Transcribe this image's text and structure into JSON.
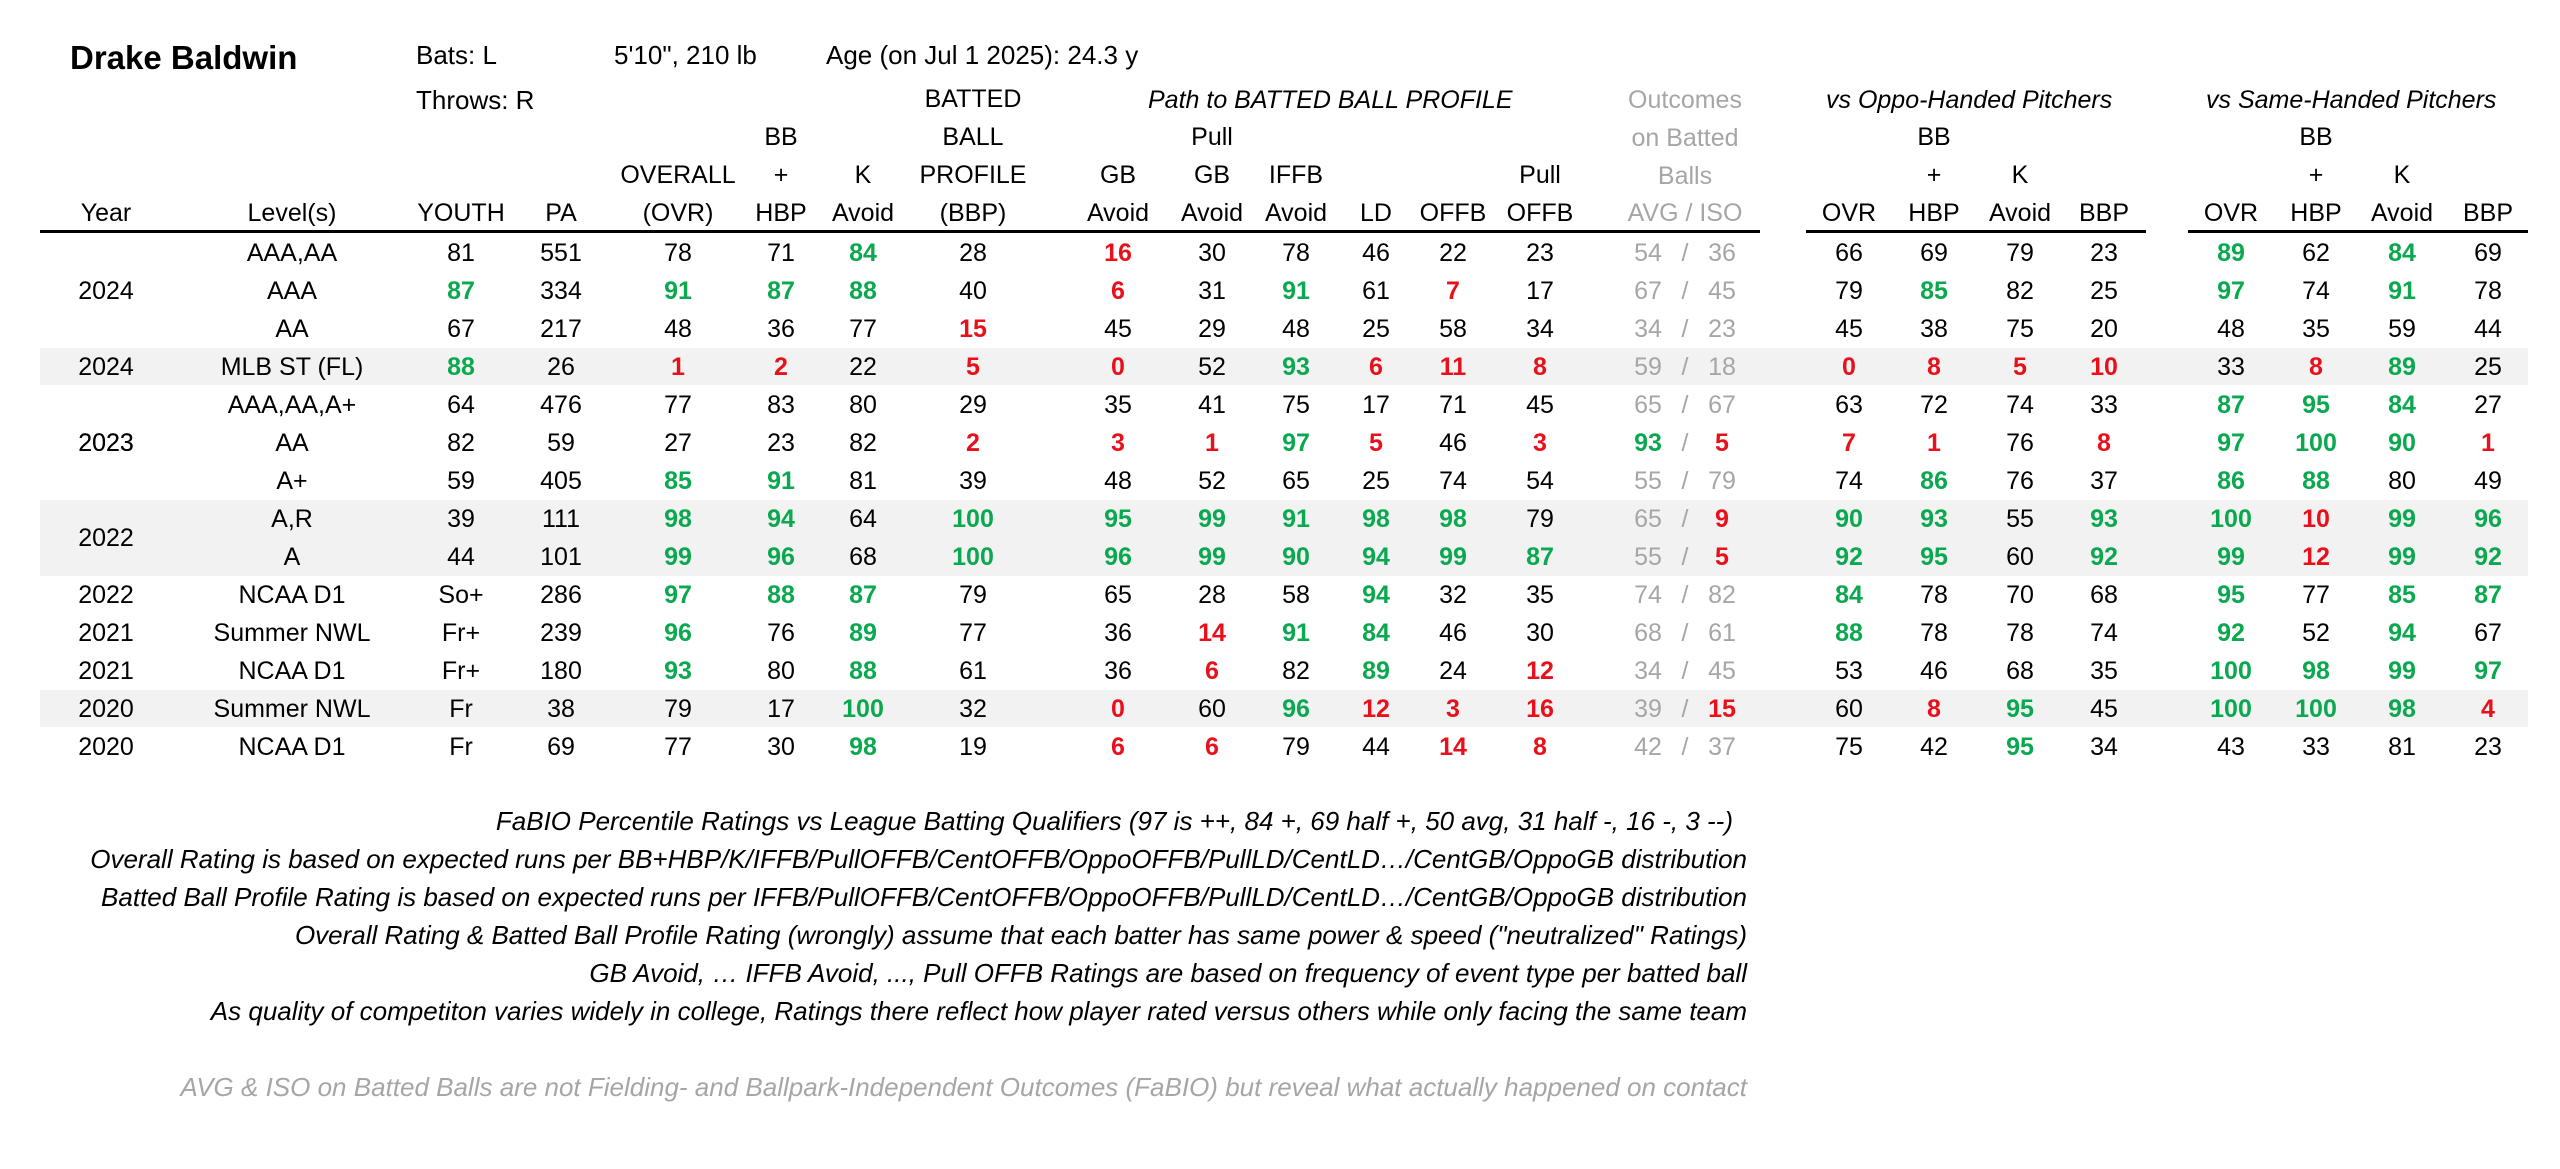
{
  "player": {
    "name": "Drake Baldwin",
    "bats": "Bats: L",
    "throws": "Throws: R",
    "size": "5'10\", 210 lb",
    "age": "Age (on Jul 1 2025): 24.3 y"
  },
  "groups": {
    "path": "Path to BATTED BALL PROFILE",
    "outcomes": [
      "Outcomes",
      "on Batted",
      "Balls"
    ],
    "oppo": "vs Oppo-Handed Pitchers",
    "same": "vs Same-Handed Pitchers"
  },
  "headers": [
    {
      "key": "year",
      "lines": [
        "Year"
      ]
    },
    {
      "key": "level",
      "lines": [
        "Level(s)"
      ]
    },
    {
      "key": "youth",
      "lines": [
        "YOUTH"
      ]
    },
    {
      "key": "pa",
      "lines": [
        "PA"
      ]
    },
    {
      "key": "ovr",
      "lines": [
        "OVERALL",
        "(OVR)"
      ]
    },
    {
      "key": "bbhbp",
      "lines": [
        "BB",
        "+",
        "HBP"
      ]
    },
    {
      "key": "kavoid",
      "lines": [
        "K",
        "Avoid"
      ]
    },
    {
      "key": "bbp",
      "lines": [
        "BATTED",
        "BALL",
        "PROFILE",
        "(BBP)"
      ]
    },
    {
      "key": "gbavoid",
      "lines": [
        "GB",
        "Avoid"
      ]
    },
    {
      "key": "pullgb",
      "lines": [
        "Pull",
        "GB",
        "Avoid"
      ]
    },
    {
      "key": "iffb",
      "lines": [
        "IFFB",
        "Avoid"
      ]
    },
    {
      "key": "ld",
      "lines": [
        "LD"
      ]
    },
    {
      "key": "offb",
      "lines": [
        "OFFB"
      ]
    },
    {
      "key": "pulloffb",
      "lines": [
        "Pull",
        "OFFB"
      ]
    },
    {
      "key": "avgiso",
      "lines": [
        "AVG  /  ISO"
      ]
    },
    {
      "key": "o_ovr",
      "lines": [
        "OVR"
      ]
    },
    {
      "key": "o_bb",
      "lines": [
        "BB",
        "+",
        "HBP"
      ]
    },
    {
      "key": "o_k",
      "lines": [
        "K",
        "Avoid"
      ]
    },
    {
      "key": "o_bbp",
      "lines": [
        "BBP"
      ]
    },
    {
      "key": "s_ovr",
      "lines": [
        "OVR"
      ]
    },
    {
      "key": "s_bb",
      "lines": [
        "BB",
        "+",
        "HBP"
      ]
    },
    {
      "key": "s_k",
      "lines": [
        "K",
        "Avoid"
      ]
    },
    {
      "key": "s_bbp",
      "lines": [
        "BBP"
      ]
    }
  ],
  "rows": [
    {
      "year": "",
      "level": "AAA,AA",
      "youth": "81",
      "pa": "551",
      "ovr": "78",
      "bb": "71",
      "k": "84",
      "bbp": "28",
      "gb": "16",
      "pgb": "30",
      "iffb": "78",
      "ld": "46",
      "offb": "22",
      "poffb": "23",
      "avg": "54",
      "iso": "36",
      "oo": "66",
      "ob": "69",
      "ok": "79",
      "op": "23",
      "so": "89",
      "sb": "62",
      "sk": "84",
      "sp": "69"
    },
    {
      "year": "2024",
      "level": "AAA",
      "youth": "87",
      "pa": "334",
      "ovr": "91",
      "bb": "87",
      "k": "88",
      "bbp": "40",
      "gb": "6",
      "pgb": "31",
      "iffb": "91",
      "ld": "61",
      "offb": "7",
      "poffb": "17",
      "avg": "67",
      "iso": "45",
      "oo": "79",
      "ob": "85",
      "ok": "82",
      "op": "25",
      "so": "97",
      "sb": "74",
      "sk": "91",
      "sp": "78"
    },
    {
      "year": "",
      "level": "AA",
      "youth": "67",
      "pa": "217",
      "ovr": "48",
      "bb": "36",
      "k": "77",
      "bbp": "15",
      "gb": "45",
      "pgb": "29",
      "iffb": "48",
      "ld": "25",
      "offb": "58",
      "poffb": "34",
      "avg": "34",
      "iso": "23",
      "oo": "45",
      "ob": "38",
      "ok": "75",
      "op": "20",
      "so": "48",
      "sb": "35",
      "sk": "59",
      "sp": "44"
    },
    {
      "year": "2024",
      "level": "MLB ST (FL)",
      "youth": "88",
      "pa": "26",
      "ovr": "1",
      "bb": "2",
      "k": "22",
      "bbp": "5",
      "gb": "0",
      "pgb": "52",
      "iffb": "93",
      "ld": "6",
      "offb": "11",
      "poffb": "8",
      "avg": "59",
      "iso": "18",
      "oo": "0",
      "ob": "8",
      "ok": "5",
      "op": "10",
      "so": "33",
      "sb": "8",
      "sk": "89",
      "sp": "25"
    },
    {
      "year": "",
      "level": "AAA,AA,A+",
      "youth": "64",
      "pa": "476",
      "ovr": "77",
      "bb": "83",
      "k": "80",
      "bbp": "29",
      "gb": "35",
      "pgb": "41",
      "iffb": "75",
      "ld": "17",
      "offb": "71",
      "poffb": "45",
      "avg": "65",
      "iso": "67",
      "oo": "63",
      "ob": "72",
      "ok": "74",
      "op": "33",
      "so": "87",
      "sb": "95",
      "sk": "84",
      "sp": "27"
    },
    {
      "year": "2023",
      "level": "AA",
      "youth": "82",
      "pa": "59",
      "ovr": "27",
      "bb": "23",
      "k": "82",
      "bbp": "2",
      "gb": "3",
      "pgb": "1",
      "iffb": "97",
      "ld": "5",
      "offb": "46",
      "poffb": "3",
      "avg": "93",
      "iso": "5",
      "oo": "7",
      "ob": "1",
      "ok": "76",
      "op": "8",
      "so": "97",
      "sb": "100",
      "sk": "90",
      "sp": "1"
    },
    {
      "year": "",
      "level": "A+",
      "youth": "59",
      "pa": "405",
      "ovr": "85",
      "bb": "91",
      "k": "81",
      "bbp": "39",
      "gb": "48",
      "pgb": "52",
      "iffb": "65",
      "ld": "25",
      "offb": "74",
      "poffb": "54",
      "avg": "55",
      "iso": "79",
      "oo": "74",
      "ob": "86",
      "ok": "76",
      "op": "37",
      "so": "86",
      "sb": "88",
      "sk": "80",
      "sp": "49"
    },
    {
      "year": "",
      "level": "A,R",
      "youth": "39",
      "pa": "111",
      "ovr": "98",
      "bb": "94",
      "k": "64",
      "bbp": "100",
      "gb": "95",
      "pgb": "99",
      "iffb": "91",
      "ld": "98",
      "offb": "98",
      "poffb": "79",
      "avg": "65",
      "iso": "9",
      "oo": "90",
      "ob": "93",
      "ok": "55",
      "op": "93",
      "so": "100",
      "sb": "10",
      "sk": "99",
      "sp": "96"
    },
    {
      "year": "",
      "level": "A",
      "youth": "44",
      "pa": "101",
      "ovr": "99",
      "bb": "96",
      "k": "68",
      "bbp": "100",
      "gb": "96",
      "pgb": "99",
      "iffb": "90",
      "ld": "94",
      "offb": "99",
      "poffb": "87",
      "avg": "55",
      "iso": "5",
      "oo": "92",
      "ob": "95",
      "ok": "60",
      "op": "92",
      "so": "99",
      "sb": "12",
      "sk": "99",
      "sp": "92"
    },
    {
      "year": "2022",
      "level": "NCAA D1",
      "youth": "So+",
      "pa": "286",
      "ovr": "97",
      "bb": "88",
      "k": "87",
      "bbp": "79",
      "gb": "65",
      "pgb": "28",
      "iffb": "58",
      "ld": "94",
      "offb": "32",
      "poffb": "35",
      "avg": "74",
      "iso": "82",
      "oo": "84",
      "ob": "78",
      "ok": "70",
      "op": "68",
      "so": "95",
      "sb": "77",
      "sk": "85",
      "sp": "87"
    },
    {
      "year": "2021",
      "level": "Summer NWL",
      "youth": "Fr+",
      "pa": "239",
      "ovr": "96",
      "bb": "76",
      "k": "89",
      "bbp": "77",
      "gb": "36",
      "pgb": "14",
      "iffb": "91",
      "ld": "84",
      "offb": "46",
      "poffb": "30",
      "avg": "68",
      "iso": "61",
      "oo": "88",
      "ob": "78",
      "ok": "78",
      "op": "74",
      "so": "92",
      "sb": "52",
      "sk": "94",
      "sp": "67"
    },
    {
      "year": "2021",
      "level": "NCAA D1",
      "youth": "Fr+",
      "pa": "180",
      "ovr": "93",
      "bb": "80",
      "k": "88",
      "bbp": "61",
      "gb": "36",
      "pgb": "6",
      "iffb": "82",
      "ld": "89",
      "offb": "24",
      "poffb": "12",
      "avg": "34",
      "iso": "45",
      "oo": "53",
      "ob": "46",
      "ok": "68",
      "op": "35",
      "so": "100",
      "sb": "98",
      "sk": "99",
      "sp": "97"
    },
    {
      "year": "2020",
      "level": "Summer NWL",
      "youth": "Fr",
      "pa": "38",
      "ovr": "79",
      "bb": "17",
      "k": "100",
      "bbp": "32",
      "gb": "0",
      "pgb": "60",
      "iffb": "96",
      "ld": "12",
      "offb": "3",
      "poffb": "16",
      "avg": "39",
      "iso": "15",
      "oo": "60",
      "ob": "8",
      "ok": "95",
      "op": "45",
      "so": "100",
      "sb": "100",
      "sk": "98",
      "sp": "4"
    },
    {
      "year": "2020",
      "level": "NCAA D1",
      "youth": "Fr",
      "pa": "69",
      "ovr": "77",
      "bb": "30",
      "k": "98",
      "bbp": "19",
      "gb": "6",
      "pgb": "6",
      "iffb": "79",
      "ld": "44",
      "offb": "14",
      "poffb": "8",
      "avg": "42",
      "iso": "37",
      "oo": "75",
      "ob": "42",
      "ok": "95",
      "op": "34",
      "so": "43",
      "sb": "33",
      "sk": "81",
      "sp": "23"
    }
  ],
  "year_spans": [
    {
      "label": "2022",
      "note": "spans A,R and A rows"
    },
    {
      "label": "2023",
      "note": "spans three rows"
    }
  ],
  "notes": [
    "FaBIO Percentile Ratings vs League Batting Qualifiers (97 is ++, 84 +, 69 half +, 50 avg, 31 half -, 16 -, 3 --)",
    "Overall Rating is based on expected runs per BB+HBP/K/IFFB/PullOFFB/CentOFFB/OppoOFFB/PullLD/CentLD…/CentGB/OppoGB distribution",
    "Batted Ball Profile Rating is based on expected runs per IFFB/PullOFFB/CentOFFB/OppoOFFB/PullLD/CentLD…/CentGB/OppoGB distribution",
    "Overall Rating & Batted Ball Profile Rating (wrongly) assume that each batter has same power & speed (\"neutralized\" Ratings)",
    "GB Avoid, … IFFB Avoid, ..., Pull OFFB Ratings are based on frequency of event type per batted ball",
    "As quality of competiton varies widely in college, Ratings there reflect how player rated versus others while only facing the same team"
  ],
  "footnote": "AVG & ISO on Batted Balls are not Fielding- and Ballpark-Independent Outcomes (FaBIO) but reveal what actually happened on contact",
  "colors": {
    "green": "#0aa84f",
    "red": "#e8101a",
    "grey": "#a6a6a6",
    "shade": "#f2f2f2"
  }
}
